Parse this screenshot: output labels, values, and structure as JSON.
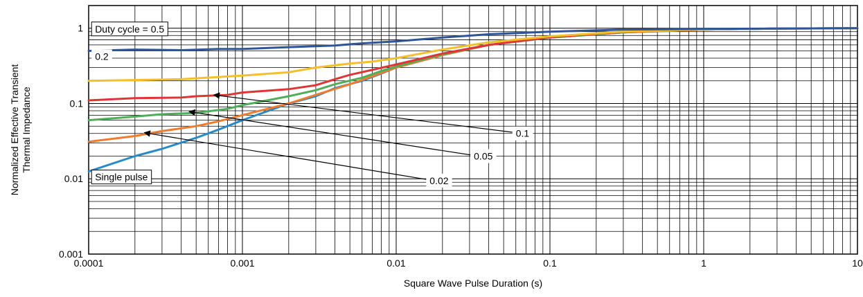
{
  "chart_data": {
    "type": "line",
    "xscale": "log",
    "yscale": "log",
    "xlim": [
      0.0001,
      10
    ],
    "ylim": [
      0.001,
      2
    ],
    "grid": true,
    "xlabel": "Square Wave Pulse Duration (s)",
    "ylabel": [
      "Normalized Effective Transient",
      "Thermal Impedance"
    ],
    "xticks": [
      {
        "value": 0.0001,
        "label": "0.0001"
      },
      {
        "value": 0.001,
        "label": "0.001"
      },
      {
        "value": 0.01,
        "label": "0.01"
      },
      {
        "value": 0.1,
        "label": "0.1"
      },
      {
        "value": 1,
        "label": "1"
      },
      {
        "value": 10,
        "label": "10"
      }
    ],
    "yticks": [
      {
        "value": 0.001,
        "label": "0.001"
      },
      {
        "value": 0.01,
        "label": "0.01"
      },
      {
        "value": 0.1,
        "label": "0.1"
      },
      {
        "value": 1,
        "label": "1"
      }
    ],
    "series": [
      {
        "color": "#2e5597",
        "x": [
          0.0001,
          0.0002,
          0.0004,
          0.0007,
          0.001,
          0.002,
          0.004,
          0.006,
          0.01,
          0.02,
          0.04,
          0.06,
          0.1,
          0.3,
          1,
          3,
          10
        ],
        "y": [
          0.5,
          0.52,
          0.51,
          0.53,
          0.53,
          0.56,
          0.59,
          0.63,
          0.67,
          0.75,
          0.83,
          0.86,
          0.9,
          0.96,
          0.98,
          0.99,
          1.0
        ]
      },
      {
        "color": "#f5bf2a",
        "x": [
          0.0001,
          0.0002,
          0.0004,
          0.0007,
          0.001,
          0.002,
          0.003,
          0.005,
          0.007,
          0.01,
          0.02,
          0.04,
          0.1,
          0.3,
          1,
          3,
          10
        ],
        "y": [
          0.2,
          0.205,
          0.21,
          0.225,
          0.235,
          0.26,
          0.3,
          0.34,
          0.36,
          0.4,
          0.52,
          0.65,
          0.78,
          0.9,
          0.96,
          0.99,
          1.0
        ]
      },
      {
        "color": "#e03536",
        "x": [
          0.0001,
          0.0002,
          0.0004,
          0.0005,
          0.0008,
          0.001,
          0.002,
          0.003,
          0.004,
          0.005,
          0.007,
          0.01,
          0.02,
          0.04,
          0.1,
          0.3,
          1,
          3,
          10
        ],
        "y": [
          0.11,
          0.118,
          0.12,
          0.125,
          0.13,
          0.14,
          0.155,
          0.175,
          0.21,
          0.24,
          0.28,
          0.33,
          0.46,
          0.6,
          0.76,
          0.89,
          0.96,
          0.99,
          1.0
        ]
      },
      {
        "color": "#4fae57",
        "x": [
          0.0001,
          0.0002,
          0.0003,
          0.0005,
          0.0008,
          0.001,
          0.002,
          0.003,
          0.004,
          0.006,
          0.008,
          0.01,
          0.02,
          0.04,
          0.1,
          0.3,
          1,
          3,
          10
        ],
        "y": [
          0.06,
          0.067,
          0.072,
          0.075,
          0.085,
          0.095,
          0.125,
          0.15,
          0.18,
          0.22,
          0.27,
          0.31,
          0.45,
          0.6,
          0.75,
          0.88,
          0.96,
          0.99,
          1.0
        ]
      },
      {
        "color": "#ee7c30",
        "x": [
          0.0001,
          0.0002,
          0.0003,
          0.0005,
          0.0007,
          0.001,
          0.002,
          0.003,
          0.005,
          0.007,
          0.01,
          0.02,
          0.04,
          0.1,
          0.3,
          1,
          3,
          10
        ],
        "y": [
          0.031,
          0.037,
          0.043,
          0.05,
          0.058,
          0.07,
          0.1,
          0.13,
          0.18,
          0.23,
          0.3,
          0.44,
          0.6,
          0.75,
          0.88,
          0.96,
          0.99,
          1.0
        ]
      },
      {
        "color": "#2a8ac9",
        "x": [
          0.0001,
          0.0002,
          0.0003,
          0.0005,
          0.0007,
          0.001,
          0.002,
          0.003,
          0.004,
          0.006,
          0.008,
          0.01,
          0.02,
          0.04,
          0.1,
          0.3,
          1,
          3,
          10
        ],
        "y": [
          0.0125,
          0.02,
          0.025,
          0.035,
          0.045,
          0.06,
          0.1,
          0.125,
          0.16,
          0.2,
          0.25,
          0.3,
          0.44,
          0.6,
          0.75,
          0.88,
          0.96,
          0.99,
          1.0
        ]
      }
    ],
    "annotations": [
      {
        "text": "Duty cycle = 0.5",
        "series": 0,
        "x": 0.00011,
        "y": 0.88,
        "box": true
      },
      {
        "text": "0.2",
        "series": 1,
        "x": 0.00011,
        "y": 0.38,
        "box": false
      },
      {
        "text": "0.1",
        "series": 2,
        "x": 0.06,
        "y": 0.036,
        "box": false,
        "arrow_to": [
          0.00065,
          0.13
        ]
      },
      {
        "text": "0.05",
        "series": 3,
        "x": 0.032,
        "y": 0.018,
        "box": false,
        "arrow_to": [
          0.00045,
          0.078
        ]
      },
      {
        "text": "0.02",
        "series": 4,
        "x": 0.0165,
        "y": 0.0085,
        "box": false,
        "arrow_to": [
          0.00023,
          0.041
        ]
      },
      {
        "text": "Single pulse",
        "series": 5,
        "x": 0.00011,
        "y": 0.0095,
        "box": true
      }
    ]
  }
}
